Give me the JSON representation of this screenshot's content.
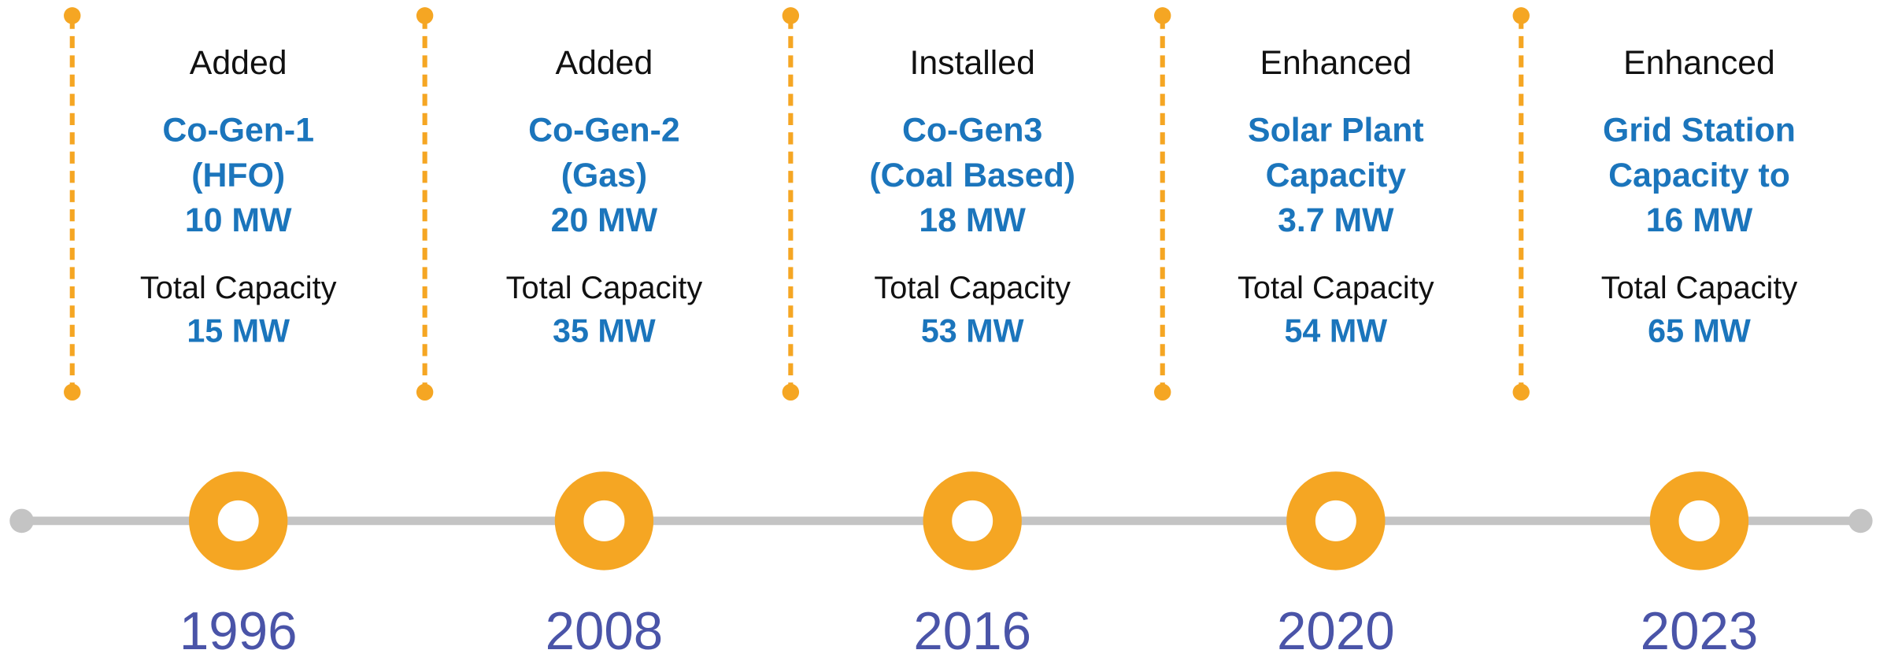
{
  "events": [
    {
      "action": "Added",
      "title": [
        "Co-Gen-1",
        "(HFO)",
        "10 MW"
      ],
      "total_label": "Total Capacity",
      "total": "15 MW",
      "year": "1996"
    },
    {
      "action": "Added",
      "title": [
        "Co-Gen-2",
        "(Gas)",
        "20 MW"
      ],
      "total_label": "Total Capacity",
      "total": "35 MW",
      "year": "2008"
    },
    {
      "action": "Installed",
      "title": [
        "Co-Gen3",
        "(Coal Based)",
        "18 MW"
      ],
      "total_label": "Total Capacity",
      "total": "53 MW",
      "year": "2016"
    },
    {
      "action": "Enhanced",
      "title": [
        "Solar Plant",
        "Capacity",
        "3.7 MW"
      ],
      "total_label": "Total Capacity",
      "total": "54 MW",
      "year": "2020"
    },
    {
      "action": "Enhanced",
      "title": [
        "Grid Station",
        "Capacity to",
        "16 MW"
      ],
      "total_label": "Total Capacity",
      "total": "65 MW",
      "year": "2023"
    }
  ]
}
